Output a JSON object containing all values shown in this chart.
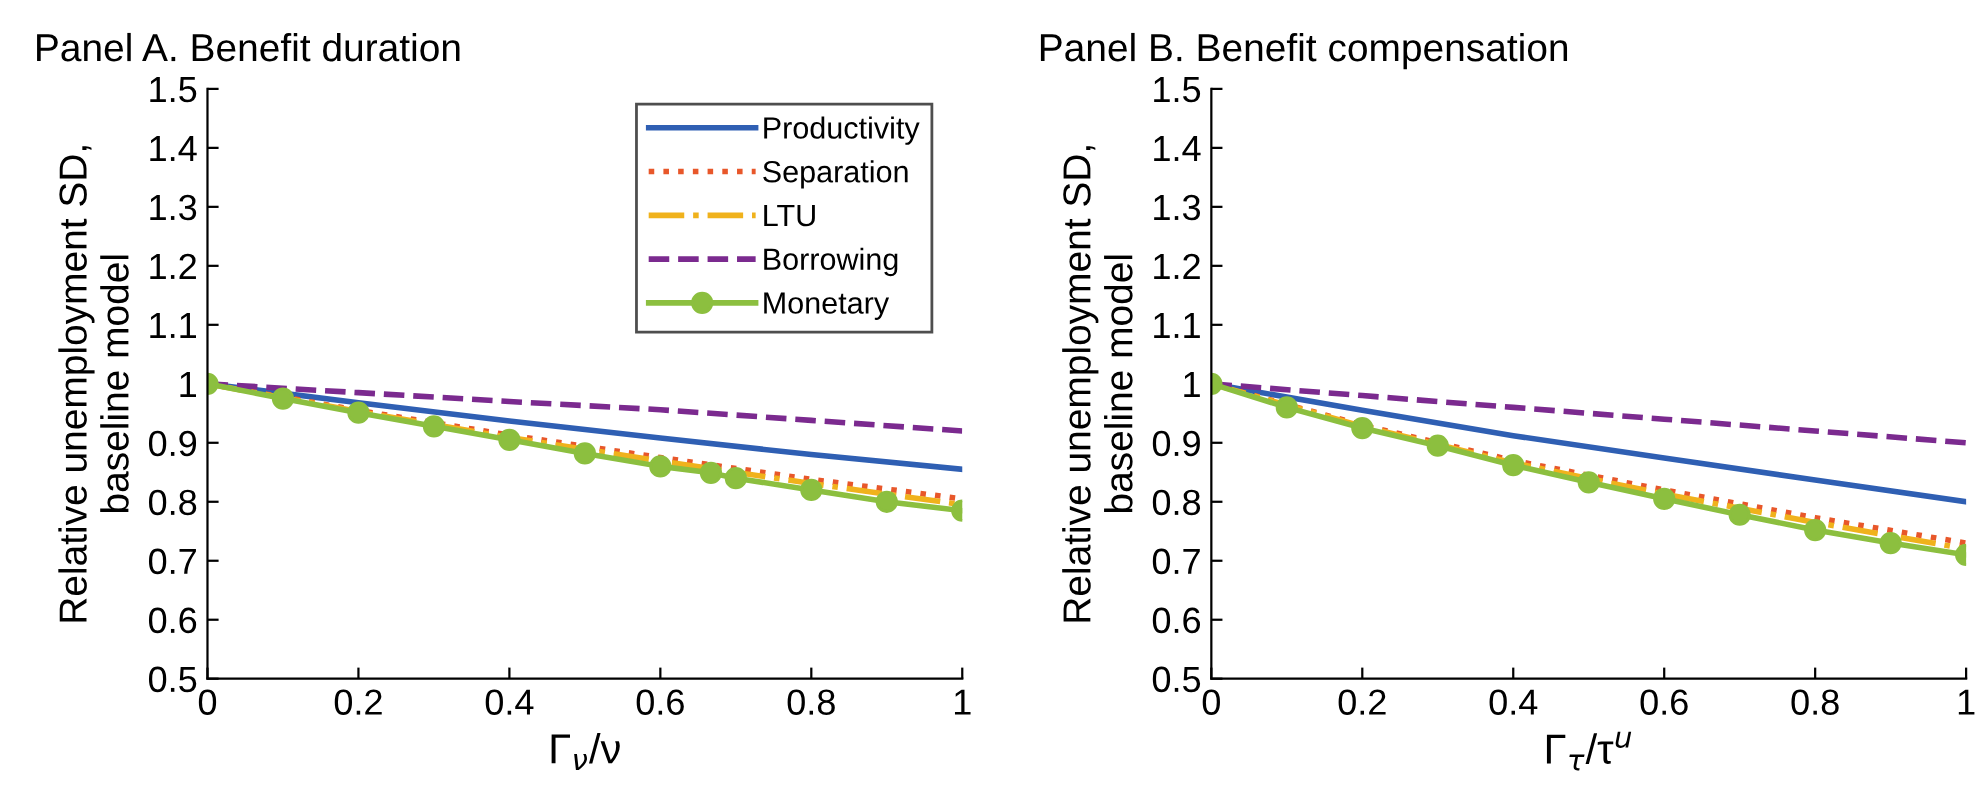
{
  "chart_data": [
    {
      "type": "line",
      "title": "Panel A. Benefit duration",
      "xlabel": "Γ$_{ν}$/ν",
      "ylabel": "Relative unemployment SD,\nbaseline model",
      "xlim": [
        0,
        1
      ],
      "ylim": [
        0.5,
        1.5
      ],
      "xticks": [
        0,
        0.2,
        0.4,
        0.6,
        0.8,
        {
          "value": 1,
          "label": "1"
        }
      ],
      "yticks": [
        0.5,
        0.6,
        0.7,
        0.8,
        0.9,
        {
          "value": 1,
          "label": "1"
        },
        1.1,
        1.2,
        1.3,
        1.4,
        1.5
      ],
      "grid": false,
      "legend": "top right",
      "series": [
        {
          "name": "Productivity",
          "color": "#2f5fb3",
          "line_style": "solid",
          "marker": "none",
          "x": [
            0,
            0.2,
            0.4,
            0.6,
            0.8,
            1
          ],
          "values": [
            1,
            0.968,
            0.937,
            0.908,
            0.88,
            0.855
          ]
        },
        {
          "name": "Separation",
          "color": "#e8572a",
          "line_style": "dotted",
          "marker": "none",
          "x": [
            0,
            0.2,
            0.4,
            0.6,
            0.8,
            1
          ],
          "values": [
            1,
            0.955,
            0.913,
            0.875,
            0.838,
            0.805
          ]
        },
        {
          "name": "LTU",
          "color": "#f0b21c",
          "line_style": "dashdot",
          "marker": "none",
          "x": [
            0,
            0.2,
            0.4,
            0.6,
            0.8,
            1
          ],
          "values": [
            1,
            0.953,
            0.909,
            0.869,
            0.831,
            0.795
          ]
        },
        {
          "name": "Borrowing",
          "color": "#7b2a8f",
          "line_style": "dashed",
          "marker": "none",
          "x": [
            0,
            0.2,
            0.4,
            0.6,
            0.8,
            1
          ],
          "values": [
            1,
            0.985,
            0.97,
            0.956,
            0.938,
            0.92
          ]
        },
        {
          "name": "Monetary",
          "color": "#8cbf3f",
          "line_style": "solid",
          "marker": "circle",
          "x": [
            0,
            0.1,
            0.2,
            0.3,
            0.4,
            0.5,
            0.6,
            0.667,
            0.7,
            0.8,
            0.9,
            1
          ],
          "values": [
            1,
            0.975,
            0.951,
            0.928,
            0.905,
            0.882,
            0.86,
            0.849,
            0.84,
            0.82,
            0.8,
            0.785
          ]
        }
      ]
    },
    {
      "type": "line",
      "title": "Panel B. Benefit compensation",
      "xlabel": "Γ$_{τ}$/τ$^{u}$",
      "ylabel": "Relative unemployment SD,\nbaseline model",
      "xlim": [
        0,
        1
      ],
      "ylim": [
        0.5,
        1.5
      ],
      "xticks": [
        0,
        0.2,
        0.4,
        0.6,
        0.8,
        {
          "value": 1,
          "label": "1"
        }
      ],
      "yticks": [
        0.5,
        0.6,
        0.7,
        0.8,
        0.9,
        {
          "value": 1,
          "label": "1"
        },
        1.1,
        1.2,
        1.3,
        1.4,
        1.5
      ],
      "grid": false,
      "series": [
        {
          "color": "#2f5fb3",
          "line_style": "solid",
          "marker": "none",
          "x": [
            0,
            0.2,
            0.4,
            0.6,
            0.8,
            1
          ],
          "values": [
            1,
            0.955,
            0.912,
            0.874,
            0.837,
            0.8
          ]
        },
        {
          "color": "#e8572a",
          "line_style": "dotted",
          "marker": "none",
          "x": [
            0,
            0.2,
            0.4,
            0.6,
            0.8,
            1
          ],
          "values": [
            1,
            0.93,
            0.87,
            0.82,
            0.773,
            0.73
          ]
        },
        {
          "color": "#f0b21c",
          "line_style": "dashdot",
          "marker": "none",
          "x": [
            0,
            0.2,
            0.4,
            0.6,
            0.8,
            1
          ],
          "values": [
            1,
            0.928,
            0.866,
            0.813,
            0.765,
            0.72
          ]
        },
        {
          "color": "#7b2a8f",
          "line_style": "dashed",
          "marker": "none",
          "x": [
            0,
            0.2,
            0.4,
            0.6,
            0.8,
            1
          ],
          "values": [
            1,
            0.98,
            0.96,
            0.94,
            0.92,
            0.9
          ]
        },
        {
          "color": "#8cbf3f",
          "line_style": "solid",
          "marker": "circle",
          "x": [
            0,
            0.1,
            0.2,
            0.3,
            0.4,
            0.5,
            0.6,
            0.7,
            0.8,
            0.9,
            1
          ],
          "values": [
            1,
            0.96,
            0.925,
            0.895,
            0.862,
            0.833,
            0.805,
            0.778,
            0.752,
            0.73,
            0.71
          ]
        }
      ]
    }
  ]
}
